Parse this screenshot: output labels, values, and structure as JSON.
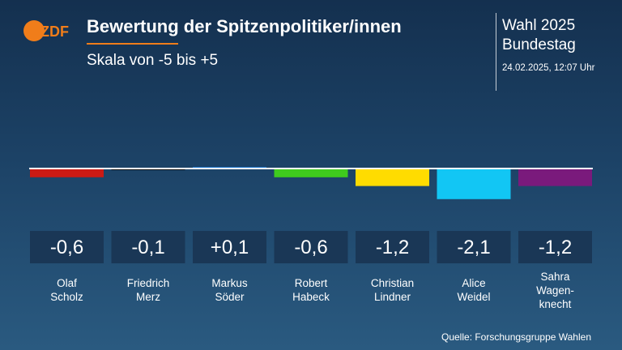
{
  "header": {
    "logo_text": "ZDF",
    "title": "Bewertung der Spitzenpolitiker/innen",
    "subtitle": "Skala von -5 bis +5",
    "election_line1": "Wahl 2025",
    "election_line2": "Bundestag",
    "timestamp": "24.02.2025, 12:07 Uhr"
  },
  "footer": {
    "source": "Quelle: Forschungsgruppe Wahlen"
  },
  "colors": {
    "accent_orange": "#f07d1a",
    "value_box": "#1a3756"
  },
  "chart_data": {
    "type": "bar",
    "title": "Bewertung der Spitzenpolitiker/innen",
    "subtitle": "Skala von -5 bis +5",
    "ylim": [
      -5,
      5
    ],
    "categories": [
      {
        "name_lines": [
          "Olaf",
          "Scholz"
        ],
        "value": -0.6,
        "label": "-0,6",
        "color": "#cc1a14"
      },
      {
        "name_lines": [
          "Friedrich",
          "Merz"
        ],
        "value": -0.1,
        "label": "-0,1",
        "color": "#111111"
      },
      {
        "name_lines": [
          "Markus",
          "Söder"
        ],
        "value": 0.1,
        "label": "+0,1",
        "color": "#1e78d0"
      },
      {
        "name_lines": [
          "Robert",
          "Habeck"
        ],
        "value": -0.6,
        "label": "-0,6",
        "color": "#3fcb1e"
      },
      {
        "name_lines": [
          "Christian",
          "Lindner"
        ],
        "value": -1.2,
        "label": "-1,2",
        "color": "#ffdc00"
      },
      {
        "name_lines": [
          "Alice",
          "Weidel"
        ],
        "value": -2.1,
        "label": "-2,1",
        "color": "#12c6f4"
      },
      {
        "name_lines": [
          "Sahra",
          "Wagen-",
          "knecht"
        ],
        "value": -1.2,
        "label": "-1,2",
        "color": "#7a1a7c"
      }
    ]
  }
}
